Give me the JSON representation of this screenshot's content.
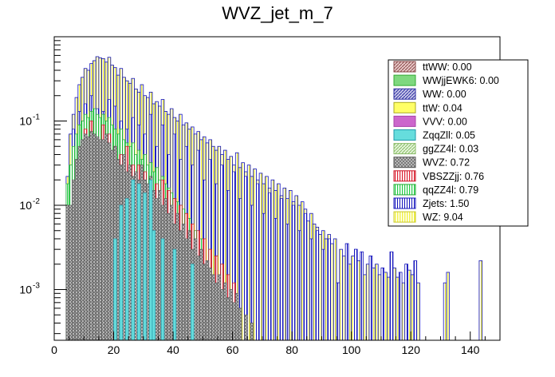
{
  "chart_data": {
    "type": "bar",
    "title": "WVZ_jet_m_7",
    "xlabel": "",
    "ylabel": "",
    "xlim": [
      0,
      150
    ],
    "ylim": [
      0.00025,
      1.0
    ],
    "yscale": "log",
    "stacked": true,
    "bin_width": 1,
    "x_ticks": [
      0,
      20,
      40,
      60,
      80,
      100,
      120,
      140
    ],
    "x_tick_labels": [
      "0",
      "20",
      "40",
      "60",
      "80",
      "100",
      "120",
      "140"
    ],
    "y_ticks": [
      0.001,
      0.01,
      0.1
    ],
    "y_tick_labels": [
      "10",
      "10",
      "10"
    ],
    "y_tick_exponents": [
      "-3",
      "-2",
      "-1"
    ],
    "legend_position": "top-right",
    "grid": false,
    "total_envelope": [
      [
        4,
        0.022
      ],
      [
        5,
        0.07
      ],
      [
        6,
        0.12
      ],
      [
        7,
        0.19
      ],
      [
        8,
        0.27
      ],
      [
        9,
        0.33
      ],
      [
        10,
        0.42
      ],
      [
        11,
        0.4
      ],
      [
        12,
        0.48
      ],
      [
        13,
        0.52
      ],
      [
        14,
        0.58
      ],
      [
        15,
        0.56
      ],
      [
        16,
        0.55
      ],
      [
        17,
        0.5
      ],
      [
        18,
        0.57
      ],
      [
        19,
        0.46
      ],
      [
        20,
        0.43
      ],
      [
        21,
        0.35
      ],
      [
        22,
        0.42
      ],
      [
        23,
        0.33
      ],
      [
        24,
        0.3
      ],
      [
        25,
        0.28
      ],
      [
        26,
        0.32
      ],
      [
        27,
        0.24
      ],
      [
        28,
        0.22
      ],
      [
        29,
        0.27
      ],
      [
        30,
        0.2
      ],
      [
        31,
        0.19
      ],
      [
        32,
        0.22
      ],
      [
        33,
        0.16
      ],
      [
        34,
        0.17
      ],
      [
        35,
        0.15
      ],
      [
        36,
        0.18
      ],
      [
        37,
        0.13
      ],
      [
        38,
        0.12
      ],
      [
        39,
        0.14
      ],
      [
        40,
        0.11
      ],
      [
        41,
        0.1
      ],
      [
        42,
        0.12
      ],
      [
        43,
        0.09
      ],
      [
        44,
        0.095
      ],
      [
        45,
        0.08
      ],
      [
        46,
        0.085
      ],
      [
        47,
        0.07
      ],
      [
        48,
        0.075
      ],
      [
        49,
        0.06
      ],
      [
        50,
        0.065
      ],
      [
        51,
        0.055
      ],
      [
        52,
        0.06
      ],
      [
        53,
        0.05
      ],
      [
        54,
        0.045
      ],
      [
        55,
        0.05
      ],
      [
        56,
        0.04
      ],
      [
        57,
        0.045
      ],
      [
        58,
        0.035
      ],
      [
        59,
        0.038
      ],
      [
        60,
        0.03
      ],
      [
        61,
        0.042
      ],
      [
        62,
        0.028
      ],
      [
        63,
        0.032
      ],
      [
        64,
        0.025
      ],
      [
        65,
        0.03
      ],
      [
        66,
        0.022
      ],
      [
        67,
        0.027
      ],
      [
        68,
        0.02
      ],
      [
        69,
        0.024
      ],
      [
        70,
        0.018
      ],
      [
        71,
        0.022
      ],
      [
        72,
        0.016
      ],
      [
        73,
        0.02
      ],
      [
        74,
        0.015
      ],
      [
        75,
        0.018
      ],
      [
        76,
        0.013
      ],
      [
        77,
        0.016
      ],
      [
        78,
        0.012
      ],
      [
        79,
        0.015
      ],
      [
        80,
        0.011
      ],
      [
        81,
        0.013
      ],
      [
        82,
        0.01
      ],
      [
        83,
        0.011
      ],
      [
        84,
        0.009
      ],
      [
        85,
        0.0065
      ],
      [
        86,
        0.008
      ],
      [
        87,
        0.006
      ],
      [
        88,
        0.0055
      ],
      [
        89,
        0.0045
      ],
      [
        90,
        0.005
      ],
      [
        91,
        0.004
      ],
      [
        92,
        0.0045
      ],
      [
        93,
        0.0035
      ],
      [
        94,
        0.004
      ],
      [
        95,
        0.0012
      ],
      [
        96,
        0.003
      ],
      [
        97,
        0.0025
      ],
      [
        98,
        0.0035
      ],
      [
        99,
        0.002
      ],
      [
        100,
        0.0025
      ],
      [
        101,
        0.003
      ],
      [
        102,
        0.0022
      ],
      [
        103,
        0.0028
      ],
      [
        104,
        0.0015
      ],
      [
        105,
        0.002
      ],
      [
        106,
        0.0025
      ],
      [
        107,
        0.0018
      ],
      [
        108,
        0.002
      ],
      [
        109,
        0.0015
      ],
      [
        110,
        0.0018
      ],
      [
        111,
        0.0016
      ],
      [
        112,
        0.0014
      ],
      [
        113,
        0.0028
      ],
      [
        114,
        0.0018
      ],
      [
        115,
        0.0014
      ],
      [
        116,
        0.0016
      ],
      [
        117,
        0.0012
      ],
      [
        118,
        0.002
      ],
      [
        119,
        0.0017
      ],
      [
        120,
        0.0015
      ],
      [
        121,
        0.0022
      ],
      [
        122,
        0.0012
      ],
      [
        131,
        0.0012
      ],
      [
        132,
        0.0016
      ],
      [
        143,
        0.0022
      ]
    ],
    "series": [
      {
        "name": "ttWW: 0.00",
        "color": "#a36b6b",
        "pattern": "hatch-diag",
        "values": []
      },
      {
        "name": "WWjjEWK6: 0.00",
        "color": "#7fd87f",
        "pattern": "solid",
        "values": []
      },
      {
        "name": "WW: 0.00",
        "color": "#2a2aa0",
        "pattern": "hatch-diag",
        "values": []
      },
      {
        "name": "ttW: 0.04",
        "color": "#ffff66",
        "pattern": "solid",
        "values": []
      },
      {
        "name": "VVV: 0.00",
        "color": "#cc66cc",
        "pattern": "solid",
        "values": []
      },
      {
        "name": "ZqqZll: 0.05",
        "color": "#66dddd",
        "pattern": "solid",
        "values": [
          [
            20,
            0.004
          ],
          [
            22,
            0.01
          ],
          [
            24,
            0.012
          ],
          [
            26,
            0.02
          ],
          [
            28,
            0.018
          ],
          [
            30,
            0.014
          ],
          [
            32,
            0.02
          ],
          [
            33,
            0.005
          ],
          [
            36,
            0.004
          ],
          [
            40,
            0.003
          ],
          [
            46,
            0.002
          ]
        ]
      },
      {
        "name": "ggZZ4l: 0.03",
        "color": "#aadd88",
        "pattern": "hatch-diag",
        "values": []
      },
      {
        "name": "WVZ: 0.72",
        "color": "#8c8c8c",
        "pattern": "hatch-cross",
        "values": [
          [
            4,
            0.01
          ],
          [
            5,
            0.01
          ],
          [
            6,
            0.02
          ],
          [
            7,
            0.035
          ],
          [
            8,
            0.05
          ],
          [
            9,
            0.06
          ],
          [
            10,
            0.07
          ],
          [
            11,
            0.065
          ],
          [
            12,
            0.075
          ],
          [
            13,
            0.07
          ],
          [
            14,
            0.065
          ],
          [
            15,
            0.06
          ],
          [
            16,
            0.06
          ],
          [
            17,
            0.07
          ],
          [
            18,
            0.055
          ],
          [
            19,
            0.045
          ],
          [
            20,
            0.05
          ],
          [
            21,
            0.035
          ],
          [
            22,
            0.03
          ],
          [
            23,
            0.04
          ],
          [
            24,
            0.025
          ],
          [
            25,
            0.03
          ],
          [
            26,
            0.022
          ],
          [
            27,
            0.025
          ],
          [
            28,
            0.02
          ],
          [
            29,
            0.03
          ],
          [
            30,
            0.02
          ],
          [
            31,
            0.018
          ],
          [
            32,
            0.022
          ],
          [
            33,
            0.015
          ],
          [
            34,
            0.012
          ],
          [
            35,
            0.015
          ],
          [
            36,
            0.01
          ],
          [
            37,
            0.012
          ],
          [
            38,
            0.008
          ],
          [
            39,
            0.01
          ],
          [
            40,
            0.006
          ],
          [
            41,
            0.008
          ],
          [
            42,
            0.005
          ],
          [
            43,
            0.006
          ],
          [
            44,
            0.004
          ],
          [
            45,
            0.005
          ],
          [
            46,
            0.003
          ],
          [
            47,
            0.004
          ],
          [
            48,
            0.0025
          ],
          [
            49,
            0.003
          ],
          [
            50,
            0.002
          ],
          [
            51,
            0.0022
          ],
          [
            52,
            0.0018
          ],
          [
            53,
            0.0015
          ],
          [
            54,
            0.0012
          ],
          [
            55,
            0.0015
          ],
          [
            56,
            0.001
          ],
          [
            57,
            0.0012
          ],
          [
            58,
            0.0008
          ],
          [
            59,
            0.001
          ],
          [
            60,
            0.0007
          ],
          [
            61,
            0.0009
          ],
          [
            62,
            0.0006
          ],
          [
            64,
            0.0005
          ],
          [
            66,
            0.0004
          ]
        ]
      },
      {
        "name": "VBSZZjj: 0.76",
        "color": "#dd2233",
        "pattern": "hatch-vert",
        "values": [
          [
            8,
            0.04
          ],
          [
            10,
            0.08
          ],
          [
            12,
            0.1
          ],
          [
            14,
            0.06
          ],
          [
            16,
            0.09
          ],
          [
            18,
            0.07
          ],
          [
            20,
            0.05
          ],
          [
            22,
            0.04
          ],
          [
            24,
            0.05
          ],
          [
            26,
            0.03
          ],
          [
            28,
            0.03
          ],
          [
            30,
            0.025
          ],
          [
            32,
            0.02
          ],
          [
            34,
            0.018
          ],
          [
            36,
            0.02
          ],
          [
            38,
            0.015
          ],
          [
            40,
            0.012
          ],
          [
            42,
            0.01
          ],
          [
            44,
            0.008
          ],
          [
            46,
            0.006
          ],
          [
            48,
            0.005
          ],
          [
            50,
            0.004
          ],
          [
            52,
            0.003
          ],
          [
            54,
            0.0025
          ],
          [
            56,
            0.002
          ],
          [
            58,
            0.0015
          ],
          [
            60,
            0.0012
          ]
        ]
      },
      {
        "name": "qqZZ4l: 0.79",
        "color": "#22cc44",
        "pattern": "hatch-vert",
        "values": [
          [
            4,
            0.018
          ],
          [
            5,
            0.03
          ],
          [
            6,
            0.05
          ],
          [
            7,
            0.07
          ],
          [
            8,
            0.09
          ],
          [
            9,
            0.1
          ],
          [
            10,
            0.12
          ],
          [
            11,
            0.11
          ],
          [
            12,
            0.13
          ],
          [
            13,
            0.14
          ],
          [
            14,
            0.12
          ],
          [
            15,
            0.11
          ],
          [
            16,
            0.12
          ],
          [
            17,
            0.1
          ],
          [
            18,
            0.11
          ],
          [
            19,
            0.09
          ],
          [
            20,
            0.08
          ],
          [
            21,
            0.07
          ],
          [
            22,
            0.08
          ],
          [
            23,
            0.06
          ],
          [
            24,
            0.055
          ],
          [
            25,
            0.05
          ],
          [
            26,
            0.055
          ],
          [
            27,
            0.04
          ],
          [
            28,
            0.045
          ],
          [
            29,
            0.035
          ],
          [
            30,
            0.04
          ],
          [
            31,
            0.03
          ],
          [
            32,
            0.032
          ],
          [
            33,
            0.025
          ],
          [
            34,
            0.028
          ],
          [
            35,
            0.02
          ],
          [
            36,
            0.022
          ],
          [
            37,
            0.018
          ],
          [
            38,
            0.016
          ],
          [
            39,
            0.014
          ],
          [
            40,
            0.012
          ],
          [
            41,
            0.011
          ],
          [
            42,
            0.01
          ],
          [
            43,
            0.009
          ],
          [
            44,
            0.008
          ],
          [
            45,
            0.007
          ],
          [
            46,
            0.006
          ],
          [
            47,
            0.005
          ],
          [
            48,
            0.0045
          ],
          [
            49,
            0.004
          ],
          [
            50,
            0.0035
          ],
          [
            52,
            0.003
          ],
          [
            54,
            0.0025
          ],
          [
            56,
            0.002
          ],
          [
            58,
            0.0015
          ]
        ]
      },
      {
        "name": "Zjets: 1.50",
        "color": "#1111bb",
        "pattern": "hatch-vert",
        "values": [
          [
            6,
            0.08
          ],
          [
            8,
            0.13
          ],
          [
            10,
            0.16
          ],
          [
            12,
            0.2
          ],
          [
            14,
            0.14
          ],
          [
            16,
            0.13
          ],
          [
            18,
            0.18
          ],
          [
            20,
            0.15
          ],
          [
            22,
            0.1
          ],
          [
            24,
            0.08
          ],
          [
            26,
            0.11
          ],
          [
            28,
            0.09
          ],
          [
            30,
            0.07
          ],
          [
            32,
            0.12
          ],
          [
            34,
            0.05
          ],
          [
            36,
            0.09
          ],
          [
            38,
            0.04
          ],
          [
            40,
            0.07
          ],
          [
            42,
            0.035
          ],
          [
            44,
            0.05
          ],
          [
            46,
            0.03
          ],
          [
            48,
            0.045
          ],
          [
            50,
            0.02
          ],
          [
            52,
            0.035
          ],
          [
            54,
            0.018
          ],
          [
            56,
            0.03
          ],
          [
            58,
            0.015
          ],
          [
            60,
            0.025
          ],
          [
            62,
            0.012
          ],
          [
            64,
            0.022
          ],
          [
            66,
            0.01
          ],
          [
            68,
            0.018
          ],
          [
            70,
            0.008
          ],
          [
            72,
            0.014
          ],
          [
            74,
            0.007
          ],
          [
            76,
            0.012
          ],
          [
            78,
            0.006
          ],
          [
            80,
            0.01
          ],
          [
            82,
            0.005
          ],
          [
            84,
            0.008
          ],
          [
            86,
            0.004
          ],
          [
            88,
            0.005
          ],
          [
            90,
            0.003
          ],
          [
            92,
            0.004
          ],
          [
            95,
            0.0012
          ],
          [
            98,
            0.0035
          ],
          [
            101,
            0.003
          ],
          [
            103,
            0.0028
          ],
          [
            106,
            0.0025
          ],
          [
            110,
            0.0018
          ],
          [
            113,
            0.0028
          ],
          [
            116,
            0.0016
          ],
          [
            118,
            0.002
          ],
          [
            121,
            0.0022
          ]
        ]
      },
      {
        "name": "WZ: 9.04",
        "color": "#ffff55",
        "pattern": "hatch-vert",
        "values": []
      }
    ]
  }
}
